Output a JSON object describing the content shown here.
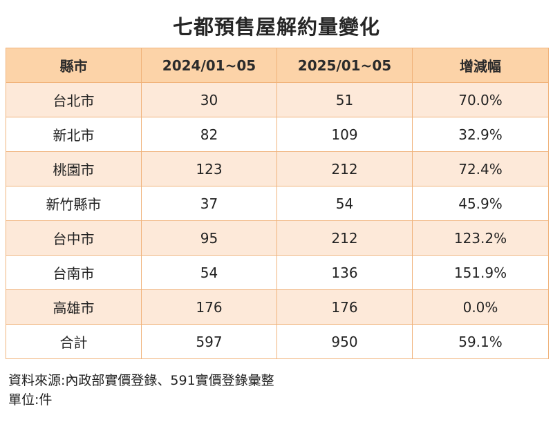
{
  "title": "七都預售屋解約量變化",
  "table": {
    "headers": [
      "縣市",
      "2024/01~05",
      "2025/01~05",
      "增減幅"
    ],
    "rows": [
      [
        "台北市",
        "30",
        "51",
        "70.0%"
      ],
      [
        "新北市",
        "82",
        "109",
        "32.9%"
      ],
      [
        "桃園市",
        "123",
        "212",
        "72.4%"
      ],
      [
        "新竹縣市",
        "37",
        "54",
        "45.9%"
      ],
      [
        "台中市",
        "95",
        "212",
        "123.2%"
      ],
      [
        "台南市",
        "54",
        "136",
        "151.9%"
      ],
      [
        "高雄市",
        "176",
        "176",
        "0.0%"
      ],
      [
        "合計",
        "597",
        "950",
        "59.1%"
      ]
    ]
  },
  "footer": {
    "source": "資料來源:內政部實價登錄、591實價登錄彙整",
    "unit": "單位:件"
  },
  "colors": {
    "header_bg": "#fcd3a8",
    "odd_row_bg": "#fde9d9",
    "even_row_bg": "#ffffff",
    "border": "#f0b27a"
  }
}
